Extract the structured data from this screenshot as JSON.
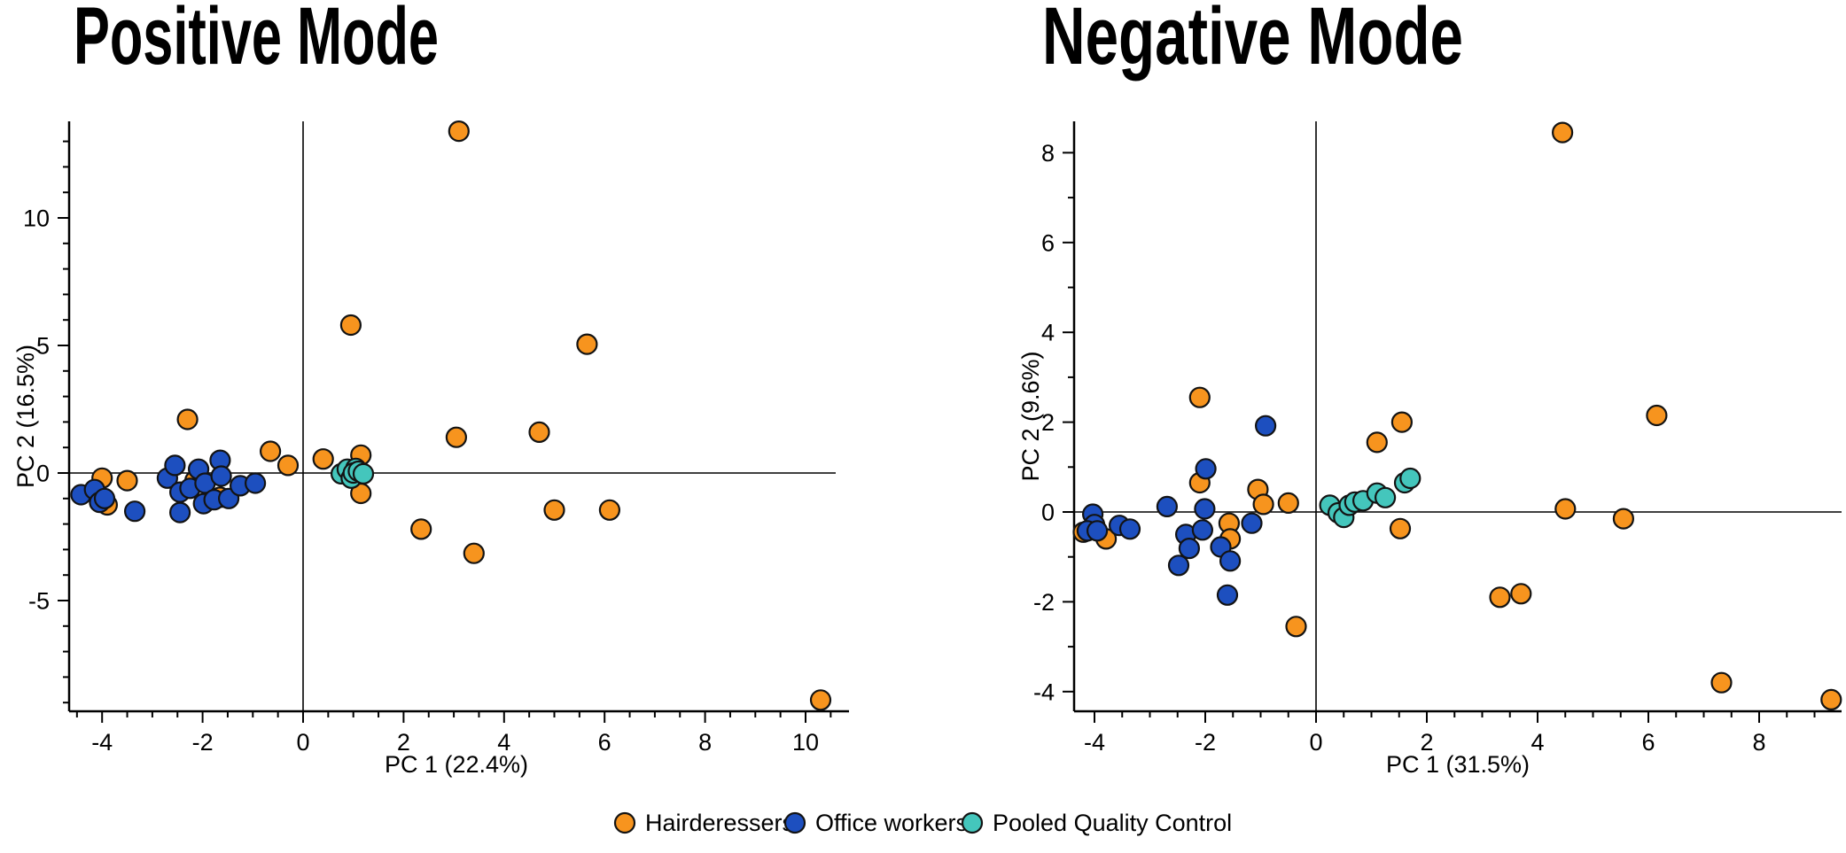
{
  "figure": {
    "legend": {
      "items": [
        {
          "label": "Hairderessers",
          "color": "#F7941E"
        },
        {
          "label": "Office workers",
          "color": "#1D4FBF"
        },
        {
          "label": "Pooled Quality Control",
          "color": "#44C6BC"
        }
      ]
    }
  },
  "chart_data": [
    {
      "type": "scatter",
      "title": "Positive Mode",
      "xlabel": "PC 1 (22.4%)",
      "ylabel": "PC 2 (16.5%)",
      "xlim": [
        -4.7,
        10.9
      ],
      "ylim": [
        -9.4,
        13.8
      ],
      "x_major_ticks": [
        -4,
        -2,
        0,
        2,
        4,
        6,
        8,
        10
      ],
      "y_major_ticks": [
        -5,
        0,
        5,
        10
      ],
      "grid": "off",
      "zero_lines": "on",
      "series": [
        {
          "name": "Hairderessers",
          "color": "#F7941E",
          "points": [
            [
              3.1,
              13.4
            ],
            [
              0.95,
              5.8
            ],
            [
              5.65,
              5.05
            ],
            [
              4.7,
              1.6
            ],
            [
              3.05,
              1.4
            ],
            [
              -2.3,
              2.1
            ],
            [
              -0.65,
              0.85
            ],
            [
              -0.3,
              0.3
            ],
            [
              0.4,
              0.55
            ],
            [
              1.15,
              0.7
            ],
            [
              1.15,
              -0.8
            ],
            [
              2.35,
              -2.2
            ],
            [
              3.4,
              -3.15
            ],
            [
              5.0,
              -1.45
            ],
            [
              6.1,
              -1.45
            ],
            [
              10.3,
              -8.9
            ],
            [
              -4.0,
              -0.2
            ],
            [
              -3.9,
              -1.25
            ],
            [
              -3.5,
              -0.3
            ],
            [
              -2.15,
              -0.3
            ],
            [
              -1.65,
              -0.95
            ]
          ]
        },
        {
          "name": "Office workers",
          "color": "#1D4FBF",
          "points": [
            [
              -4.42,
              -0.85
            ],
            [
              -4.15,
              -0.65
            ],
            [
              -4.05,
              -1.15
            ],
            [
              -3.95,
              -1.0
            ],
            [
              -3.35,
              -1.5
            ],
            [
              -2.7,
              -0.2
            ],
            [
              -2.55,
              0.3
            ],
            [
              -2.45,
              -0.75
            ],
            [
              -2.45,
              -1.55
            ],
            [
              -2.25,
              -0.6
            ],
            [
              -2.08,
              0.15
            ],
            [
              -1.98,
              -1.2
            ],
            [
              -1.95,
              -0.4
            ],
            [
              -1.77,
              -1.05
            ],
            [
              -1.65,
              0.5
            ],
            [
              -1.63,
              -0.12
            ],
            [
              -1.48,
              -1.0
            ],
            [
              -1.25,
              -0.5
            ],
            [
              -0.95,
              -0.4
            ]
          ]
        },
        {
          "name": "Pooled Quality Control",
          "color": "#44C6BC",
          "points": [
            [
              0.76,
              -0.03
            ],
            [
              0.88,
              0.15
            ],
            [
              1.05,
              0.18
            ],
            [
              0.96,
              -0.2
            ],
            [
              1.0,
              0.0
            ],
            [
              1.1,
              0.07
            ],
            [
              1.2,
              -0.03
            ]
          ]
        }
      ]
    },
    {
      "type": "scatter",
      "title": "Negative Mode",
      "xlabel": "PC 1 (31.5%)",
      "ylabel": "PC 2 (9.6%)",
      "xlim": [
        -4.4,
        9.5
      ],
      "ylim": [
        -4.45,
        8.7
      ],
      "x_major_ticks": [
        -4,
        -2,
        0,
        2,
        4,
        6,
        8
      ],
      "y_major_ticks": [
        -4,
        -2,
        0,
        2,
        4,
        6,
        8
      ],
      "grid": "off",
      "zero_lines": "on",
      "series": [
        {
          "name": "Hairderessers",
          "color": "#F7941E",
          "points": [
            [
              4.45,
              8.45
            ],
            [
              -2.1,
              2.55
            ],
            [
              6.15,
              2.15
            ],
            [
              1.55,
              2.0
            ],
            [
              1.1,
              1.55
            ],
            [
              -2.1,
              0.65
            ],
            [
              -1.05,
              0.5
            ],
            [
              -0.95,
              0.17
            ],
            [
              -0.5,
              0.2
            ],
            [
              4.5,
              0.07
            ],
            [
              5.55,
              -0.15
            ],
            [
              -4.2,
              -0.45
            ],
            [
              -3.79,
              -0.6
            ],
            [
              -1.57,
              -0.25
            ],
            [
              -1.55,
              -0.6
            ],
            [
              1.52,
              -0.37
            ],
            [
              -0.36,
              -2.55
            ],
            [
              3.32,
              -1.9
            ],
            [
              3.7,
              -1.82
            ],
            [
              7.32,
              -3.8
            ],
            [
              9.3,
              -4.18
            ]
          ]
        },
        {
          "name": "Office workers",
          "color": "#1D4FBF",
          "points": [
            [
              -0.91,
              1.92
            ],
            [
              -1.99,
              0.96
            ],
            [
              -2.69,
              0.12
            ],
            [
              -2.01,
              0.07
            ],
            [
              -4.03,
              -0.05
            ],
            [
              -4.0,
              -0.28
            ],
            [
              -4.13,
              -0.42
            ],
            [
              -3.95,
              -0.42
            ],
            [
              -3.55,
              -0.3
            ],
            [
              -3.36,
              -0.38
            ],
            [
              -2.35,
              -0.5
            ],
            [
              -2.29,
              -0.81
            ],
            [
              -2.05,
              -0.4
            ],
            [
              -1.72,
              -0.78
            ],
            [
              -2.48,
              -1.19
            ],
            [
              -1.6,
              -1.85
            ],
            [
              -1.55,
              -1.09
            ],
            [
              -1.16,
              -0.25
            ]
          ]
        },
        {
          "name": "Pooled Quality Control",
          "color": "#44C6BC",
          "points": [
            [
              0.25,
              0.15
            ],
            [
              0.4,
              -0.02
            ],
            [
              0.5,
              -0.12
            ],
            [
              0.6,
              0.15
            ],
            [
              0.7,
              0.22
            ],
            [
              0.85,
              0.25
            ],
            [
              1.1,
              0.42
            ],
            [
              1.25,
              0.32
            ],
            [
              1.6,
              0.65
            ],
            [
              1.7,
              0.75
            ]
          ]
        }
      ]
    }
  ]
}
